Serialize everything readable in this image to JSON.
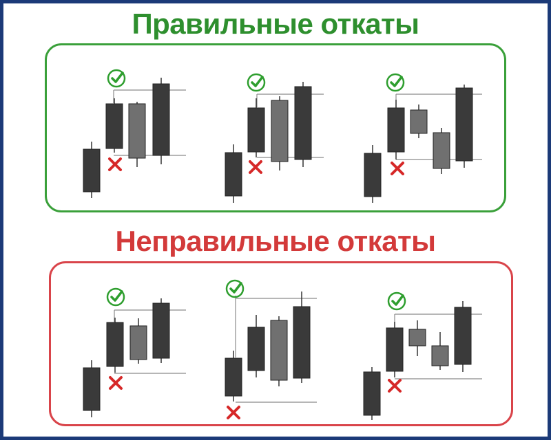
{
  "titles": {
    "good": "Правильные откаты",
    "bad": "Неправильные откаты"
  },
  "colors": {
    "good": "#2e8f2e",
    "good_border": "#3aa03a",
    "bad": "#d33a3a",
    "bad_border": "#d9444a",
    "frame": "#1c3a78",
    "candle_dark": "#3a3a3a",
    "candle_light": "#707070",
    "level_line": "#8a8a8a",
    "cross": "#d62828",
    "check": "#2e9e2e"
  },
  "icons": {
    "check": "check-circle-icon",
    "cross": "cross-icon"
  }
}
